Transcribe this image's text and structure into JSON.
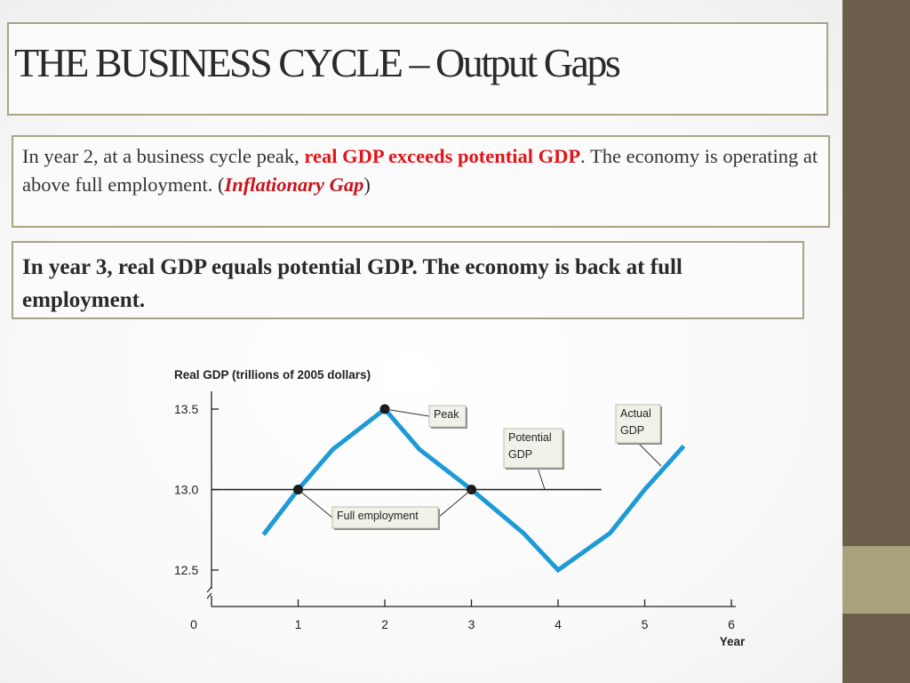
{
  "slide": {
    "title": "THE BUSINESS CYCLE – Output Gaps",
    "box1": {
      "text_before": "In year 2, at a business cycle peak, ",
      "highlight": "real GDP exceeds potential GDP",
      "text_after": ". The economy is operating at above full employment. (",
      "italic_term": "Inflationary Gap",
      "closing": ")"
    },
    "box2": {
      "text": "In year 3, real GDP equals potential GDP. The economy is back at full employment."
    }
  },
  "colors": {
    "actual_line": "#1e9ad6",
    "text_highlight": "#e0161c",
    "side_strip": "#6b5f4b",
    "side_accent": "#a8a27c"
  },
  "chart_data": {
    "type": "line",
    "ylabel": "Real GDP (trillions of 2005 dollars)",
    "xlabel": "Year",
    "xlim": [
      0,
      6
    ],
    "ylim": [
      12.4,
      13.55
    ],
    "y_ticks": [
      12.5,
      13.0,
      13.5
    ],
    "y_tick_labels": [
      "12.5",
      "13.0",
      "13.5"
    ],
    "x_ticks": [
      1,
      2,
      3,
      4,
      5,
      6
    ],
    "x_tick_labels": [
      "1",
      "2",
      "3",
      "4",
      "5",
      "6"
    ],
    "origin_label": "0",
    "series": [
      {
        "name": "Actual GDP",
        "x": [
          0.6,
          1.0,
          1.4,
          2.0,
          2.4,
          3.0,
          3.6,
          4.0,
          4.6,
          5.0,
          5.45
        ],
        "y": [
          12.72,
          13.0,
          13.25,
          13.5,
          13.25,
          13.0,
          12.73,
          12.5,
          12.73,
          13.0,
          13.27
        ]
      },
      {
        "name": "Potential GDP",
        "x": [
          0,
          4.5
        ],
        "y": [
          13.0,
          13.0
        ]
      }
    ],
    "points": [
      {
        "x": 1,
        "y": 13.0
      },
      {
        "x": 2,
        "y": 13.5
      },
      {
        "x": 3,
        "y": 13.0
      }
    ],
    "annotations": {
      "peak": "Peak",
      "potential": [
        "Potential",
        "GDP"
      ],
      "actual": [
        "Actual",
        "GDP"
      ],
      "full_employment": "Full employment"
    }
  }
}
